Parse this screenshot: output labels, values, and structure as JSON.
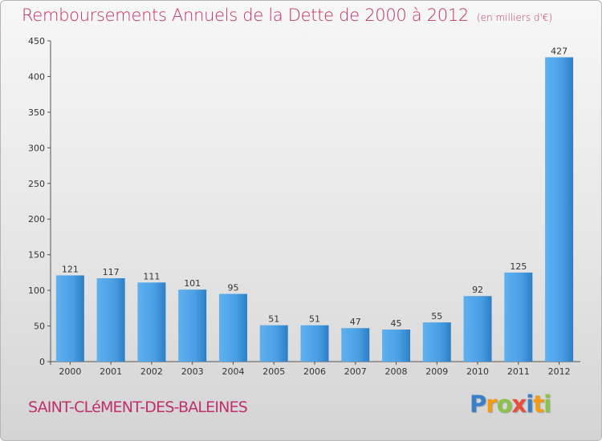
{
  "header": {
    "title": "Remboursements Annuels de la Dette de 2000 à 2012",
    "unit": "(en milliers d'€)"
  },
  "footer": {
    "commune": "SAINT-CLéMENT-DES-BALEINES",
    "logo_letters": [
      "P",
      "r",
      "o",
      "x",
      "i",
      "t",
      "i"
    ],
    "logo_colors": [
      "#3a7fc8",
      "#f39c12",
      "#8bc34a",
      "#e74c3c",
      "#3a7fc8",
      "#f39c12",
      "#8bc34a"
    ]
  },
  "chart_data": {
    "type": "bar",
    "title": "Remboursements Annuels de la Dette de 2000 à 2012",
    "categories": [
      "2000",
      "2001",
      "2002",
      "2003",
      "2004",
      "2005",
      "2006",
      "2007",
      "2008",
      "2009",
      "2010",
      "2011",
      "2012"
    ],
    "values": [
      121,
      117,
      111,
      101,
      95,
      51,
      51,
      47,
      45,
      55,
      92,
      125,
      427
    ],
    "ylim": [
      0,
      450
    ],
    "yticks": [
      0,
      50,
      100,
      150,
      200,
      250,
      300,
      350,
      400,
      450
    ],
    "grid": false,
    "bar_color": "#3d8fd6",
    "bar_color_light": "#5fb0ee"
  }
}
